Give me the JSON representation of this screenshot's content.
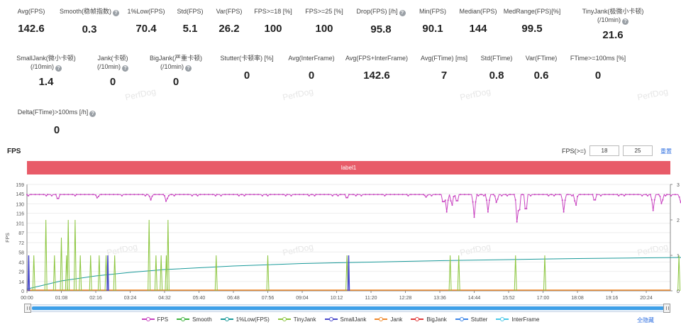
{
  "metrics_row1": [
    {
      "label": "Avg(FPS)",
      "value": "142.6"
    },
    {
      "label": "Smooth(稳帧指数)",
      "value": "0.3",
      "help": true
    },
    {
      "label": "1%Low(FPS)",
      "value": "70.4"
    },
    {
      "label": "Std(FPS)",
      "value": "5.1"
    },
    {
      "label": "Var(FPS)",
      "value": "26.2"
    },
    {
      "label": "FPS>=18 [%]",
      "value": "100"
    },
    {
      "label": "FPS>=25 [%]",
      "value": "100"
    },
    {
      "label": "Drop(FPS) [/h]",
      "value": "95.8",
      "help": true
    },
    {
      "label": "Min(FPS)",
      "value": "90.1"
    },
    {
      "label": "Median(FPS)",
      "value": "144"
    },
    {
      "label": "MedRange(FPS)[%]",
      "value": "99.5"
    },
    {
      "label": "TinyJank(极微小卡顿)",
      "label2": "(/10min)",
      "value": "21.6",
      "help": true
    }
  ],
  "metrics_row2": [
    {
      "label": "SmallJank(微小卡顿)",
      "label2": "(/10min)",
      "value": "1.4",
      "help": true
    },
    {
      "label": "Jank(卡顿)",
      "label2": "(/10min)",
      "value": "0",
      "help": true
    },
    {
      "label": "BigJank(严重卡顿)",
      "label2": "(/10min)",
      "value": "0",
      "help": true
    },
    {
      "label": "Stutter(卡顿率) [%]",
      "value": "0"
    },
    {
      "label": "Avg(InterFrame)",
      "value": "0"
    },
    {
      "label": "Avg(FPS+InterFrame)",
      "value": "142.6"
    },
    {
      "label": "Avg(FTime) [ms]",
      "value": "7"
    },
    {
      "label": "Std(FTime)",
      "value": "0.8"
    },
    {
      "label": "Var(FTime)",
      "value": "0.6"
    },
    {
      "label": "FTime>=100ms [%]",
      "value": "0"
    }
  ],
  "metrics_row3": [
    {
      "label": "Delta(FTime)>100ms [/h]",
      "value": "0",
      "help": true
    }
  ],
  "watermark": "PerfDog",
  "help_glyph": "?",
  "section_title": "FPS",
  "threshold": {
    "label": "FPS(>=)",
    "low": "18",
    "high": "25",
    "reset": "重置"
  },
  "label_bar": "label1",
  "hide_all": "全隐藏",
  "colors": {
    "fps": "#c842c0",
    "smooth": "#3fb33f",
    "low1": "#1a9a9a",
    "tinyjank": "#8cc63f",
    "smalljank": "#4a4acc",
    "jank": "#f08a2c",
    "bigjank": "#e03a3a",
    "stutter": "#3d86e8",
    "interframe": "#4ac8e8",
    "label_bar": "#e85b68",
    "scroll": "#3d9fe8"
  },
  "chart_data": {
    "type": "line",
    "ylabel": "FPS",
    "y_ticks": [
      0,
      14,
      29,
      43,
      58,
      72,
      87,
      101,
      116,
      130,
      145,
      159
    ],
    "ylim": [
      0,
      159
    ],
    "y2_ticks": [
      0,
      1,
      2,
      3
    ],
    "y2lim": [
      0,
      3
    ],
    "x_ticks": [
      "00:00",
      "01:08",
      "02:16",
      "03:24",
      "04:32",
      "05:40",
      "06:48",
      "07:56",
      "09:04",
      "10:12",
      "11:20",
      "12:28",
      "13:36",
      "14:44",
      "15:52",
      "17:00",
      "18:08",
      "19:16",
      "20:24"
    ],
    "fps_base": 144,
    "fps_dips": [
      {
        "t": 0.9,
        "v": 135
      },
      {
        "t": 2.05,
        "v": 138
      },
      {
        "t": 3.6,
        "v": 136
      },
      {
        "t": 4.05,
        "v": 132
      },
      {
        "t": 9.3,
        "v": 137
      },
      {
        "t": 11.6,
        "v": 140
      },
      {
        "t": 12.1,
        "v": 128
      },
      {
        "t": 12.2,
        "v": 118
      },
      {
        "t": 12.35,
        "v": 125
      },
      {
        "t": 12.5,
        "v": 130
      },
      {
        "t": 13.0,
        "v": 110
      },
      {
        "t": 13.4,
        "v": 118
      },
      {
        "t": 13.65,
        "v": 130
      },
      {
        "t": 14.25,
        "v": 95
      },
      {
        "t": 14.3,
        "v": 110
      },
      {
        "t": 14.5,
        "v": 112
      },
      {
        "t": 15.6,
        "v": 118
      },
      {
        "t": 15.95,
        "v": 125
      },
      {
        "t": 16.5,
        "v": 132
      },
      {
        "t": 18.2,
        "v": 120
      },
      {
        "t": 18.45,
        "v": 128
      },
      {
        "t": 19.0,
        "v": 132
      },
      {
        "t": 19.25,
        "v": 124
      },
      {
        "t": 19.75,
        "v": 135
      },
      {
        "t": 20.35,
        "v": 130
      },
      {
        "t": 20.9,
        "v": 120
      },
      {
        "t": 21.0,
        "v": 112
      },
      {
        "t": 21.1,
        "v": 104
      }
    ],
    "tinyjank_spikes": [
      {
        "t": 0.2,
        "v": 1.0
      },
      {
        "t": 0.55,
        "v": 2.0
      },
      {
        "t": 0.8,
        "v": 1.0
      },
      {
        "t": 1.0,
        "v": 1.5
      },
      {
        "t": 1.15,
        "v": 1.0
      },
      {
        "t": 1.2,
        "v": 2.0
      },
      {
        "t": 1.4,
        "v": 2.0
      },
      {
        "t": 1.55,
        "v": 1.0
      },
      {
        "t": 1.85,
        "v": 1.0
      },
      {
        "t": 2.1,
        "v": 1.0
      },
      {
        "t": 2.3,
        "v": 1.0
      },
      {
        "t": 2.55,
        "v": 1.0
      },
      {
        "t": 3.55,
        "v": 2.0
      },
      {
        "t": 3.75,
        "v": 1.0
      },
      {
        "t": 3.9,
        "v": 1.0
      },
      {
        "t": 4.05,
        "v": 1.0
      },
      {
        "t": 4.1,
        "v": 2.0
      },
      {
        "t": 5.5,
        "v": 1.0
      },
      {
        "t": 7.0,
        "v": 1.0
      },
      {
        "t": 9.3,
        "v": 1.0
      },
      {
        "t": 12.3,
        "v": 1.0
      },
      {
        "t": 12.55,
        "v": 1.0
      },
      {
        "t": 14.2,
        "v": 1.0
      },
      {
        "t": 15.05,
        "v": 1.0
      },
      {
        "t": 18.95,
        "v": 1.0
      }
    ],
    "smalljank_spikes": [
      {
        "t": 0.05,
        "v": 1.0
      },
      {
        "t": 2.35,
        "v": 1.0
      },
      {
        "t": 9.35,
        "v": 1.0
      }
    ],
    "low1_curve": [
      {
        "t": 0,
        "v": 0.05
      },
      {
        "t": 1.0,
        "v": 0.28
      },
      {
        "t": 2.0,
        "v": 0.42
      },
      {
        "t": 3.0,
        "v": 0.52
      },
      {
        "t": 4.0,
        "v": 0.6
      },
      {
        "t": 6.0,
        "v": 0.7
      },
      {
        "t": 8.0,
        "v": 0.77
      },
      {
        "t": 10.0,
        "v": 0.81
      },
      {
        "t": 12.0,
        "v": 0.85
      },
      {
        "t": 14.0,
        "v": 0.88
      },
      {
        "t": 16.0,
        "v": 0.91
      },
      {
        "t": 18.0,
        "v": 0.93
      },
      {
        "t": 20.0,
        "v": 0.95
      },
      {
        "t": 21.2,
        "v": 0.96
      }
    ],
    "legend": [
      {
        "name": "FPS",
        "color": "#c842c0"
      },
      {
        "name": "Smooth",
        "color": "#3fb33f"
      },
      {
        "name": "1%Low(FPS)",
        "color": "#1a9a9a"
      },
      {
        "name": "TinyJank",
        "color": "#8cc63f"
      },
      {
        "name": "SmallJank",
        "color": "#4a4acc"
      },
      {
        "name": "Jank",
        "color": "#f08a2c"
      },
      {
        "name": "BigJank",
        "color": "#e03a3a"
      },
      {
        "name": "Stutter",
        "color": "#3d86e8"
      },
      {
        "name": "InterFrame",
        "color": "#4ac8e8"
      }
    ]
  }
}
